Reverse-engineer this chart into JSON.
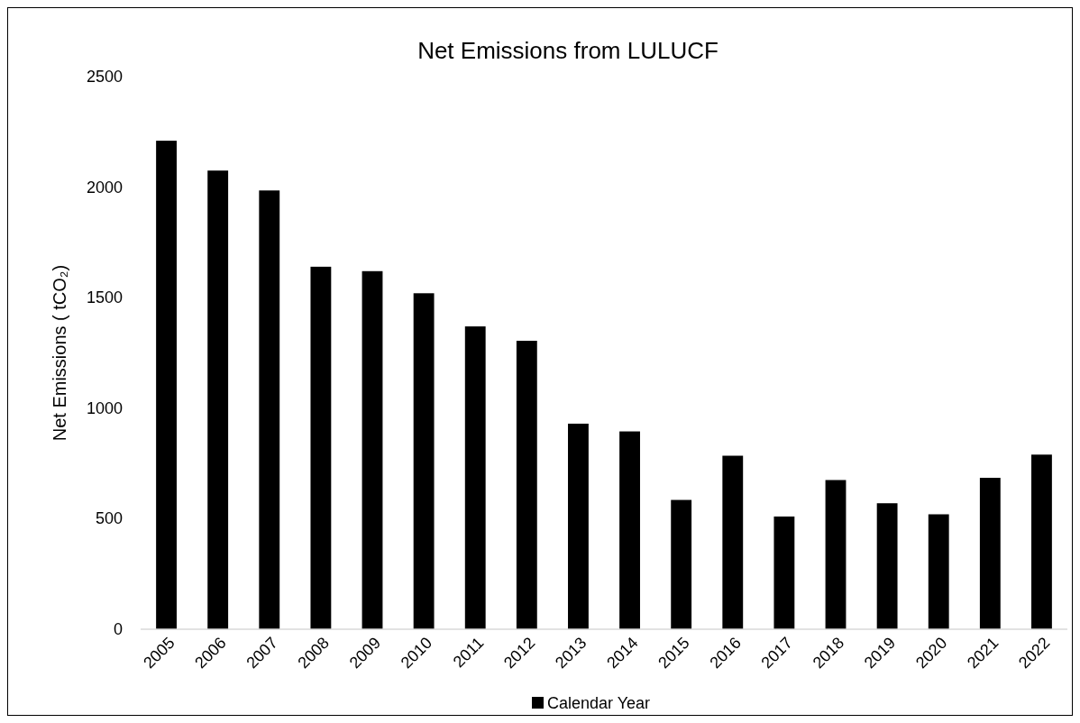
{
  "chart_data": {
    "type": "bar",
    "title": "Net Emissions from LULUCF",
    "ylabel": "Net Emissions ( tCO₂)",
    "categories": [
      "2005",
      "2006",
      "2007",
      "2008",
      "2009",
      "2010",
      "2011",
      "2012",
      "2013",
      "2014",
      "2015",
      "2016",
      "2017",
      "2018",
      "2019",
      "2020",
      "2021",
      "2022"
    ],
    "series": [
      {
        "name": "Calendar Year",
        "color": "#000000",
        "values": [
          2210,
          2075,
          1985,
          1640,
          1620,
          1520,
          1370,
          1305,
          930,
          895,
          585,
          785,
          510,
          675,
          570,
          520,
          685,
          790
        ]
      }
    ],
    "ylim": [
      0,
      2500
    ],
    "yticks": [
      0,
      500,
      1000,
      1500,
      2000,
      2500
    ],
    "grid": false,
    "legend": "bottom"
  }
}
